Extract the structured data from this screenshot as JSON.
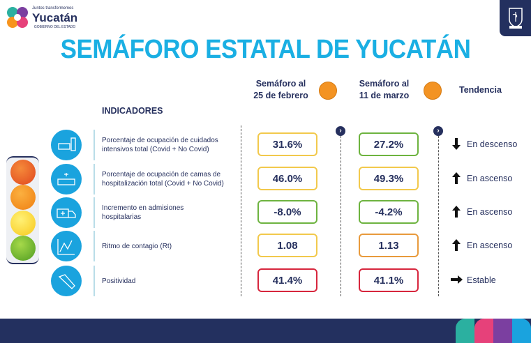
{
  "logo": {
    "tagline": "Juntos transformemos",
    "name": "Yucatán",
    "sub": "GOBIERNO DEL ESTADO"
  },
  "title": "SEMÁFORO ESTATAL DE YUCATÁN",
  "headers": {
    "col1": [
      "Semáforo al",
      "25 de febrero"
    ],
    "col2": [
      "Semáforo al",
      "11 de marzo"
    ],
    "col3": "Tendencia",
    "indicators": "INDICADORES",
    "col1_color": "#f39323",
    "col2_color": "#f39323"
  },
  "rows": [
    {
      "icon": "icu-bed-icon",
      "label": [
        "Porcentaje de ocupación de cuidados",
        "intensivos total (Covid + No Covid)"
      ],
      "v1": "31.6%",
      "c1": "#f2c94c",
      "v2": "27.2%",
      "c2": "#6db33f",
      "trend": "En descenso",
      "arrow": "arrow-down"
    },
    {
      "icon": "hospital-bed-icon",
      "label": [
        "Porcentaje de ocupación de camas de",
        "hospitalización total (Covid + No Covid)"
      ],
      "v1": "46.0%",
      "c1": "#f2c94c",
      "v2": "49.3%",
      "c2": "#f2c94c",
      "trend": "En ascenso",
      "arrow": "arrow-up"
    },
    {
      "icon": "ambulance-icon",
      "label": [
        "Incremento en admisiones",
        "hospitalarias"
      ],
      "v1": "-8.0%",
      "c1": "#6db33f",
      "v2": "-4.2%",
      "c2": "#6db33f",
      "trend": "En ascenso",
      "arrow": "arrow-up"
    },
    {
      "icon": "contagion-chart-icon",
      "label": [
        "Ritmo de contagio (Rt)",
        ""
      ],
      "v1": "1.08",
      "c1": "#f2c94c",
      "v2": "1.13",
      "c2": "#e89a3c",
      "trend": "En ascenso",
      "arrow": "arrow-up"
    },
    {
      "icon": "swab-test-icon",
      "label": [
        "Positividad",
        ""
      ],
      "v1": "41.4%",
      "c1": "#d7263d",
      "v2": "41.1%",
      "c2": "#d7263d",
      "trend": "Estable",
      "arrow": "arrow-right"
    }
  ],
  "traffic_light": [
    "#ec5a24",
    "#f7941d",
    "#fcd52e",
    "#6fb52c"
  ],
  "colors": {
    "title": "#1aafe3",
    "navy": "#23305f",
    "icon_bg": "#1aa3de"
  }
}
